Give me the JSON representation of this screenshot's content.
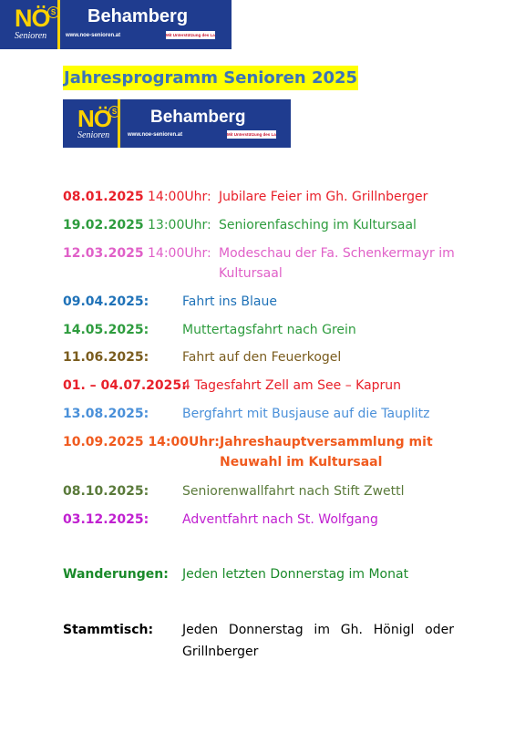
{
  "logo": {
    "mark": "NÖ",
    "superscript": "S",
    "subtitle": "Senioren",
    "name": "Behamberg",
    "url": "www.noe-senioren.at",
    "badge": "Mit Unterstützung des Landes NÖ"
  },
  "title": "Jahresprogramm  Senioren  2025",
  "events": [
    {
      "date": "08.01.2025",
      "time": " 14:00Uhr:",
      "desc": [
        "Jubilare Feier im Gh. Grillnberger"
      ],
      "color": "#e8202a"
    },
    {
      "date": "19.02.2025",
      "time": " 13:00Uhr:",
      "desc": [
        "Seniorenfasching im Kultursaal"
      ],
      "color": "#2e9c3e"
    },
    {
      "date": "12.03.2025",
      "time": " 14:00Uhr:",
      "desc": [
        "Modeschau der Fa. Schenkermayr im",
        "Kultursaal"
      ],
      "color": "#e060c8"
    },
    {
      "date": "09.04.2025:",
      "desc": [
        "Fahrt ins Blaue"
      ],
      "color": "#1f72b8"
    },
    {
      "date": "14.05.2025:",
      "desc": [
        "Muttertagsfahrt nach Grein"
      ],
      "color": "#2e9c3e"
    },
    {
      "date": "11.06.2025:",
      "desc": [
        "Fahrt auf den Feuerkogel"
      ],
      "color": "#7a5c1e"
    },
    {
      "date": "01. – 04.07.2025:",
      "desc": [
        "4 Tagesfahrt Zell am See – Kaprun"
      ],
      "color": "#e8202a"
    },
    {
      "date": "13.08.2025:",
      "desc": [
        "Bergfahrt mit Busjause auf die Tauplitz"
      ],
      "color": "#4a90d9"
    },
    {
      "date": "10.09.2025 14:00Uhr:",
      "desc": [
        "Jahreshauptversammlung mit",
        "Neuwahl im Kultursaal"
      ],
      "color": "#f05a1e"
    },
    {
      "date": "08.10.2025:",
      "desc": [
        "Seniorenwallfahrt nach Stift Zwettl"
      ],
      "color": "#5a7a3a"
    },
    {
      "date": "03.12.2025:",
      "desc": [
        "Adventfahrt nach St. Wolfgang"
      ],
      "color": "#c020d0"
    }
  ],
  "wanderungen": {
    "label": "Wanderungen:",
    "text": "Jeden letzten Donnerstag im Monat"
  },
  "stammtisch": {
    "label": "Stammtisch:",
    "text": [
      "Jeden Donnerstag im Gh. Hönigl oder",
      "Grillnberger"
    ]
  }
}
